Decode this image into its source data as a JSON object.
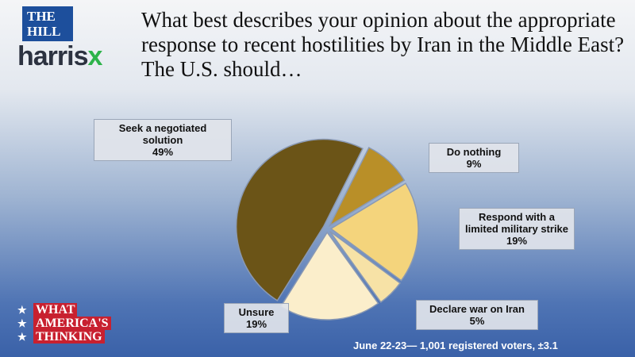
{
  "chart_data": {
    "type": "pie",
    "title": "What best describes your opinion about the appropriate response to recent hostilities by Iran in the Middle East? The U.S. should…",
    "categories": [
      "Seek a negotiated solution",
      "Do nothing",
      "Respond with a limited military strike",
      "Declare war on Iran",
      "Unsure"
    ],
    "values": [
      49,
      9,
      19,
      5,
      19
    ],
    "value_labels": [
      "49%",
      "9%",
      "19%",
      "5%",
      "19%"
    ],
    "colors": [
      "#6b5417",
      "#b98f28",
      "#f4d47c",
      "#f7e2a6",
      "#fbeecb"
    ],
    "footnote": "June 22-23— 1,001 registered voters, ±3.1"
  },
  "logos": {
    "the": "THE",
    "hill": "HILL",
    "harris": "harris",
    "x": "x",
    "wat": [
      "WHAT",
      "AMERICA'S",
      "THINKING"
    ]
  }
}
